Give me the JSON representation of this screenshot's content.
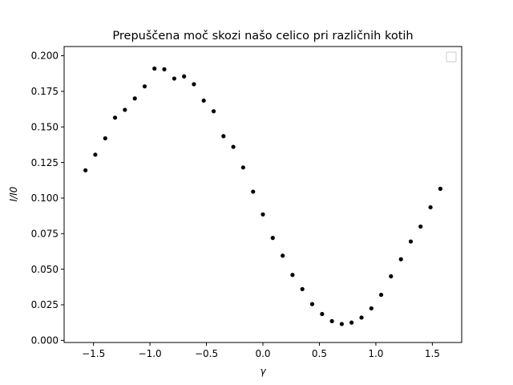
{
  "chart_data": {
    "type": "scatter",
    "title": "Prepuščena moč skozi našo celico pri različnih kotih",
    "xlabel": "γ",
    "ylabel": "I/I0",
    "xlim": [
      -1.76,
      1.76
    ],
    "ylim": [
      -0.0015,
      0.2065
    ],
    "xticks": [
      -1.5,
      -1.0,
      -0.5,
      0.0,
      0.5,
      1.0,
      1.5
    ],
    "xtick_labels": [
      "−1.5",
      "−1.0",
      "−0.5",
      "0.0",
      "0.5",
      "1.0",
      "1.5"
    ],
    "yticks": [
      0.0,
      0.025,
      0.05,
      0.075,
      0.1,
      0.125,
      0.15,
      0.175,
      0.2
    ],
    "ytick_labels": [
      "0.000",
      "0.025",
      "0.050",
      "0.075",
      "0.100",
      "0.125",
      "0.150",
      "0.175",
      "0.200"
    ],
    "grid": false,
    "legend": {
      "placement": "top-right",
      "entries": []
    },
    "marker_color": "#000000",
    "series": [
      {
        "x": [
          -1.571,
          -1.484,
          -1.396,
          -1.309,
          -1.222,
          -1.134,
          -1.047,
          -0.96,
          -0.873,
          -0.785,
          -0.698,
          -0.611,
          -0.524,
          -0.436,
          -0.349,
          -0.262,
          -0.175,
          -0.087,
          0.0,
          0.087,
          0.175,
          0.262,
          0.349,
          0.436,
          0.524,
          0.611,
          0.698,
          0.785,
          0.873,
          0.96,
          1.047,
          1.134,
          1.222,
          1.309,
          1.396,
          1.484,
          1.571
        ],
        "y": [
          0.1195,
          0.1305,
          0.142,
          0.1565,
          0.162,
          0.17,
          0.1785,
          0.191,
          0.1905,
          0.184,
          0.1855,
          0.18,
          0.1685,
          0.161,
          0.1435,
          0.136,
          0.1215,
          0.1045,
          0.0885,
          0.072,
          0.0595,
          0.046,
          0.036,
          0.0255,
          0.0185,
          0.0135,
          0.0115,
          0.0125,
          0.016,
          0.0225,
          0.032,
          0.045,
          0.057,
          0.0695,
          0.08,
          0.0935,
          0.1065
        ]
      }
    ]
  }
}
